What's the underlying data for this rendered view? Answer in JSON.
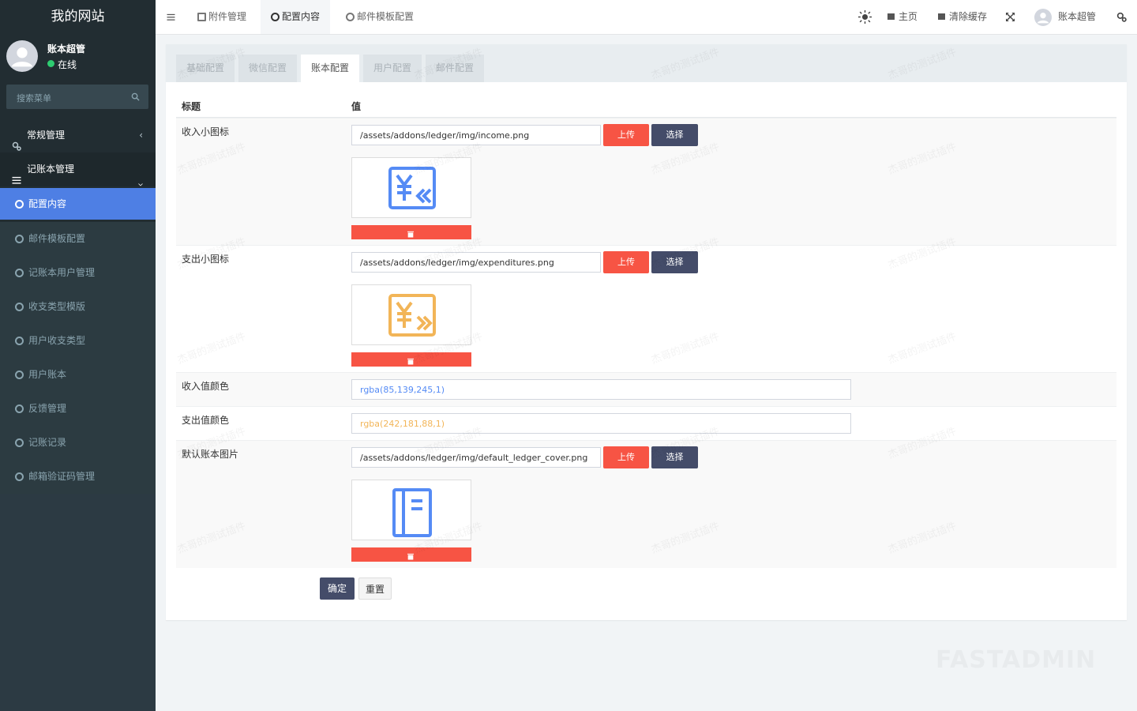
{
  "sidebar": {
    "logo": "我的网站",
    "user": {
      "name": "账本超管",
      "status": "在线"
    },
    "search_placeholder": "搜索菜单",
    "menu": [
      {
        "label": "常规管理"
      },
      {
        "label": "记账本管理",
        "children": [
          "配置内容",
          "邮件模板配置",
          "记账本用户管理",
          "收支类型模版",
          "用户收支类型",
          "用户账本",
          "反馈管理",
          "记账记录",
          "邮箱验证码管理"
        ],
        "active_child": 0
      }
    ]
  },
  "topbar": {
    "tabs": [
      "附件管理",
      "配置内容",
      "邮件模板配置"
    ],
    "active_tab": 1,
    "links": [
      "主页",
      "清除缓存"
    ],
    "user": "账本超管"
  },
  "panel": {
    "tabs": [
      "基础配置",
      "微信配置",
      "账本配置",
      "用户配置",
      "邮件配置"
    ],
    "active_tab": 2,
    "columns": [
      "标题",
      "值"
    ],
    "rows": [
      {
        "label": "收入小图标",
        "value": "/assets/addons/ledger/img/income.png",
        "type": "image",
        "icon": "income"
      },
      {
        "label": "支出小图标",
        "value": "/assets/addons/ledger/img/expenditures.png",
        "type": "image",
        "icon": "expense"
      },
      {
        "label": "收入值颜色",
        "value": "rgba(85,139,245,1)",
        "type": "color"
      },
      {
        "label": "支出值颜色",
        "value": "rgba(242,181,88,1)",
        "type": "color"
      },
      {
        "label": "默认账本图片",
        "value": "/assets/addons/ledger/img/default_ledger_cover.png",
        "type": "image",
        "icon": "book"
      }
    ],
    "upload": "上传",
    "select": "选择",
    "submit": "确定",
    "reset": "重置"
  },
  "watermark": "杰哥的测试插件",
  "brand_watermark": "FASTADMIN"
}
